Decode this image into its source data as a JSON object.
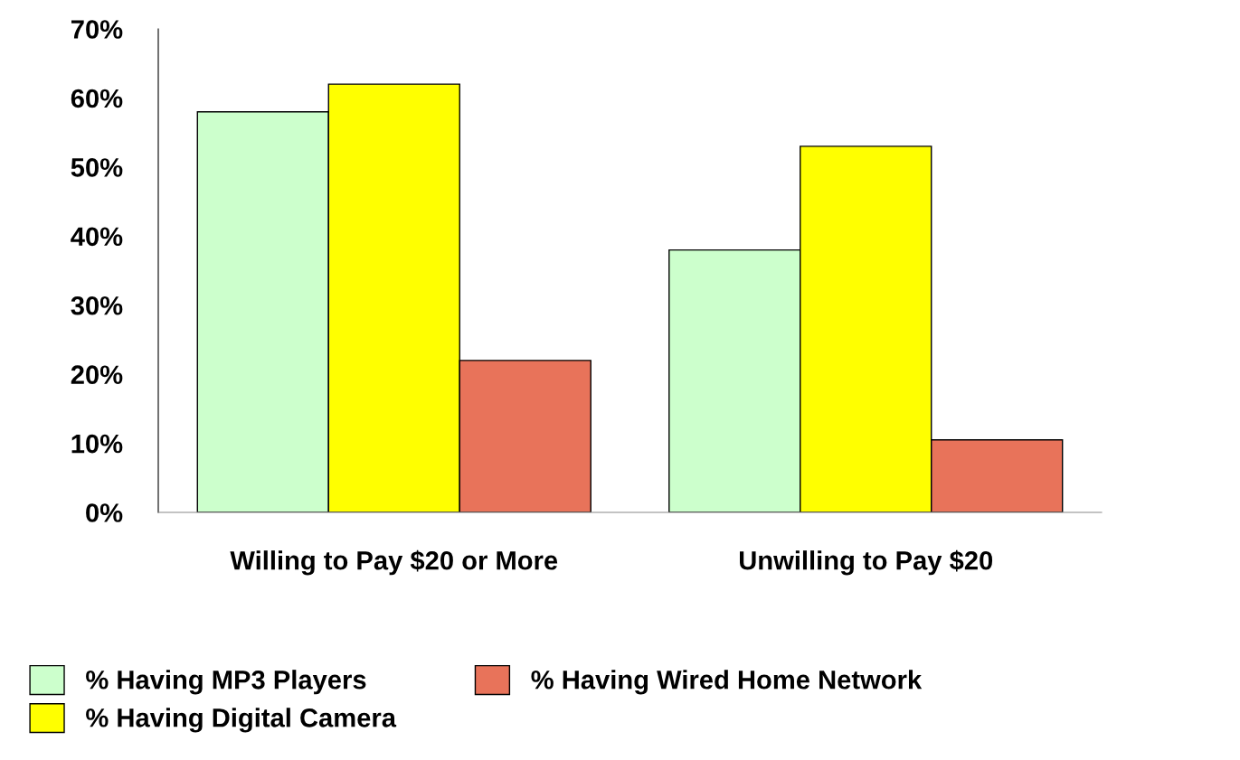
{
  "chart_data": {
    "type": "bar",
    "categories": [
      "Willing to Pay $20 or More",
      "Unwilling to Pay $20"
    ],
    "series": [
      {
        "name": "% Having MP3 Players",
        "color": "#ccffcc",
        "values": [
          58,
          38
        ]
      },
      {
        "name": "% Having Digital Camera",
        "color": "#ffff00",
        "values": [
          62,
          53
        ]
      },
      {
        "name": "% Having Wired Home Network",
        "color": "#e8735a",
        "values": [
          22,
          10.5
        ]
      }
    ],
    "ylim": [
      0,
      70
    ],
    "yticks": [
      {
        "value": 0,
        "label": "0%"
      },
      {
        "value": 10,
        "label": "10%"
      },
      {
        "value": 20,
        "label": "20%"
      },
      {
        "value": 30,
        "label": "30%"
      },
      {
        "value": 40,
        "label": "40%"
      },
      {
        "value": 50,
        "label": "50%"
      },
      {
        "value": 60,
        "label": "60%"
      },
      {
        "value": 70,
        "label": "70%"
      }
    ],
    "grid": false,
    "legend": "bottom"
  }
}
